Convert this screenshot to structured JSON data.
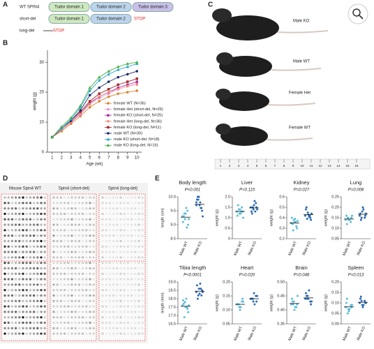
{
  "panel_labels": [
    "A",
    "B",
    "C",
    "D",
    "E"
  ],
  "domains": {
    "rows": [
      {
        "label": "WT SPIN4",
        "boxes": [
          "Tudor domain 1",
          "Tudor domain 2",
          "Tudor domain 3"
        ]
      },
      {
        "label": "short-del",
        "boxes": [
          "Tudor domain 1",
          "Tudor domain 2"
        ],
        "stop": "STOP"
      },
      {
        "label": "long-del",
        "stop": "STOP"
      }
    ]
  },
  "photos": {
    "labels": [
      "Male KO",
      "Male WT",
      "Female Het",
      "Female WT"
    ],
    "ruler": [
      1,
      2,
      3,
      4,
      5,
      6,
      7,
      8,
      9,
      10,
      11,
      12,
      13,
      14,
      15,
      16
    ]
  },
  "blots": {
    "titles": [
      "Mouse Spin4 WT",
      "Spin4 (short-del)",
      "Spin4 (long-del)"
    ]
  },
  "chart_data": [
    {
      "type": "line",
      "xlabel": "Age (wk)",
      "ylabel": "weight (g)",
      "x": [
        1,
        2,
        3,
        4,
        5,
        6,
        7,
        8,
        9,
        10
      ],
      "xlim": [
        0.5,
        10.5
      ],
      "xticks": [
        1,
        2,
        3,
        4,
        5,
        6,
        7,
        8,
        9,
        10
      ],
      "ylim": [
        0,
        34
      ],
      "yticks": [
        0,
        10,
        20,
        30
      ],
      "legend": "lower right",
      "series": [
        {
          "name": "female WT (N=36)",
          "color": "#d9822b",
          "marker": "circle",
          "values": [
            5,
            7,
            9.5,
            12,
            15,
            17,
            18.5,
            19.5,
            20,
            20.5
          ]
        },
        {
          "name": "female Het (short-del, N=26)",
          "color": "#e88bd8",
          "marker": "diamond",
          "values": [
            5,
            7.5,
            10,
            12.5,
            16,
            18,
            19.5,
            21,
            22,
            23
          ]
        },
        {
          "name": "female KO (short-del, N=25)",
          "color": "#b0359e",
          "marker": "square",
          "values": [
            5,
            7.5,
            10,
            13,
            16.5,
            18.5,
            20,
            21.5,
            22.5,
            23.5
          ]
        },
        {
          "name": "female Het (long-del, N=36)",
          "color": "#f08a7a",
          "marker": "circle",
          "values": [
            5,
            7.5,
            10,
            13,
            16,
            18.5,
            20,
            21,
            22,
            22.5
          ]
        },
        {
          "name": "female KO (long-del, N=11)",
          "color": "#a52a2a",
          "marker": "square",
          "values": [
            5,
            8,
            10.5,
            13.5,
            17,
            19.5,
            21,
            22.5,
            23.5,
            24.5
          ]
        },
        {
          "name": "male WT (N=30)",
          "color": "#1c2a6b",
          "marker": "circle",
          "values": [
            5,
            8,
            10.5,
            14,
            19,
            21.5,
            23.5,
            25,
            26,
            27
          ]
        },
        {
          "name": "male KO (short-del, N=18)",
          "color": "#2aa7c9",
          "marker": "triangle",
          "values": [
            5,
            8,
            11,
            15,
            20.5,
            24,
            26,
            27.5,
            28.5,
            29.5
          ]
        },
        {
          "name": "male KO (long-del, N=16)",
          "color": "#4db04a",
          "marker": "triangle",
          "values": [
            5,
            8.5,
            11.5,
            15.5,
            21.5,
            25,
            27,
            28.5,
            29.5,
            30
          ]
        }
      ]
    },
    {
      "type": "strip",
      "title": "Body length",
      "pvalue": "P<0.001",
      "ylabel": "length (cm)",
      "categories": [
        "Male WT",
        "Male KO"
      ],
      "colors": [
        "#5bbcd6",
        "#2d6bb3"
      ],
      "ylim": [
        8.5,
        10
      ],
      "yticks": [
        8.5,
        {
          "value": 9,
          "label": "9.0"
        },
        9.5,
        {
          "value": 10,
          "label": "10.0"
        }
      ],
      "values": [
        [
          9.3,
          9.2,
          9.5,
          9.1,
          9.4,
          9.0,
          9.3,
          9.6,
          9.2,
          9.4,
          8.9,
          9.3
        ],
        [
          9.8,
          10.0,
          9.6,
          9.9,
          9.7,
          9.5,
          10.0,
          9.8,
          9.3,
          9.9,
          9.6,
          9.7
        ]
      ],
      "means": [
        9.27,
        9.73
      ]
    },
    {
      "type": "strip",
      "title": "Liver",
      "pvalue": "P=0.115",
      "ylabel": "weight (g)",
      "categories": [
        "Male WT",
        "Male KO"
      ],
      "colors": [
        "#5bbcd6",
        "#2d6bb3"
      ],
      "ylim": [
        0,
        2
      ],
      "yticks": [
        0,
        0.5,
        {
          "value": 1,
          "label": "1.0"
        },
        1.5,
        {
          "value": 2,
          "label": "2.0"
        }
      ],
      "values": [
        [
          1.3,
          1.2,
          1.5,
          1.1,
          1.4,
          1.3,
          1.6,
          1.2,
          1.0,
          1.4,
          1.3
        ],
        [
          1.5,
          1.4,
          1.7,
          1.3,
          1.6,
          1.5,
          1.2,
          1.8,
          1.4,
          1.5,
          1.3
        ]
      ],
      "means": [
        1.3,
        1.47
      ]
    },
    {
      "type": "strip",
      "title": "Kidney",
      "pvalue": "P=0.027",
      "ylabel": "weight (g)",
      "categories": [
        "Male WT",
        "Male KO"
      ],
      "colors": [
        "#5bbcd6",
        "#2d6bb3"
      ],
      "ylim": [
        0.2,
        0.6
      ],
      "yticks": [
        0.2,
        0.3,
        0.4,
        0.5,
        0.6
      ],
      "values": [
        [
          0.35,
          0.38,
          0.32,
          0.4,
          0.36,
          0.3,
          0.34,
          0.39,
          0.37,
          0.28,
          0.36
        ],
        [
          0.42,
          0.45,
          0.4,
          0.48,
          0.43,
          0.38,
          0.5,
          0.41,
          0.44,
          0.39,
          0.42
        ]
      ],
      "means": [
        0.35,
        0.43
      ]
    },
    {
      "type": "strip",
      "title": "Lung",
      "pvalue": "P=0.008",
      "ylabel": "weight (g)",
      "categories": [
        "Male WT",
        "Male KO"
      ],
      "colors": [
        "#5bbcd6",
        "#2d6bb3"
      ],
      "ylim": [
        0.05,
        0.25
      ],
      "yticks": [
        0.05,
        {
          "value": 0.1,
          "label": "0.10"
        },
        0.15,
        {
          "value": 0.2,
          "label": "0.20"
        },
        0.25
      ],
      "values": [
        [
          0.14,
          0.15,
          0.13,
          0.16,
          0.14,
          0.15,
          0.12,
          0.14,
          0.16,
          0.15
        ],
        [
          0.16,
          0.18,
          0.15,
          0.17,
          0.2,
          0.16,
          0.14,
          0.19,
          0.17,
          0.15
        ]
      ],
      "means": [
        0.144,
        0.167
      ]
    },
    {
      "type": "strip",
      "title": "Tibia length",
      "pvalue": "P<0.0001",
      "ylabel": "length (mm)",
      "categories": [
        "Male WT",
        "Male KO"
      ],
      "colors": [
        "#5bbcd6",
        "#2d6bb3"
      ],
      "ylim": [
        16.5,
        19
      ],
      "yticks": [
        16.5,
        {
          "value": 17,
          "label": "17.0"
        },
        17.5,
        {
          "value": 18,
          "label": "18.0"
        },
        18.5,
        {
          "value": 19,
          "label": "19.0"
        }
      ],
      "values": [
        [
          17.6,
          17.8,
          17.4,
          17.9,
          17.5,
          17.2,
          17.7,
          18.0,
          17.6,
          16.9,
          17.5
        ],
        [
          18.4,
          18.6,
          18.2,
          18.8,
          18.3,
          18.5,
          18.0,
          18.9,
          18.4,
          18.2,
          18.6
        ]
      ],
      "means": [
        17.55,
        18.45
      ]
    },
    {
      "type": "strip",
      "title": "Heart",
      "pvalue": "P=0.020",
      "ylabel": "weight (g)",
      "categories": [
        "Male WT",
        "Male KO"
      ],
      "colors": [
        "#5bbcd6",
        "#2d6bb3"
      ],
      "ylim": [
        0.05,
        0.2
      ],
      "yticks": [
        0.05,
        {
          "value": 0.1,
          "label": "0.10"
        },
        0.15,
        {
          "value": 0.2,
          "label": "0.20"
        }
      ],
      "values": [
        [
          0.12,
          0.11,
          0.13,
          0.12,
          0.1,
          0.14,
          0.12,
          0.11,
          0.13,
          0.12
        ],
        [
          0.14,
          0.13,
          0.15,
          0.14,
          0.16,
          0.13,
          0.14,
          0.12,
          0.15,
          0.14
        ]
      ],
      "means": [
        0.12,
        0.14
      ]
    },
    {
      "type": "strip",
      "title": "Brain",
      "pvalue": "P=0.048",
      "ylabel": "weight (g)",
      "categories": [
        "Male WT",
        "Male KO"
      ],
      "colors": [
        "#5bbcd6",
        "#2d6bb3"
      ],
      "ylim": [
        0.35,
        0.5
      ],
      "yticks": [
        0.35,
        {
          "value": 0.4,
          "label": "0.40"
        },
        0.45,
        {
          "value": 0.5,
          "label": "0.50"
        }
      ],
      "values": [
        [
          0.42,
          0.43,
          0.41,
          0.44,
          0.4,
          0.42,
          0.43,
          0.41,
          0.45,
          0.42
        ],
        [
          0.44,
          0.45,
          0.43,
          0.46,
          0.44,
          0.42,
          0.45,
          0.47,
          0.43,
          0.44
        ]
      ],
      "means": [
        0.423,
        0.443
      ]
    },
    {
      "type": "strip",
      "title": "Spleen",
      "pvalue": "P=0.013",
      "ylabel": "weight (g)",
      "categories": [
        "Male WT",
        "Male KO"
      ],
      "colors": [
        "#5bbcd6",
        "#2d6bb3"
      ],
      "ylim": [
        0,
        0.2
      ],
      "yticks": [
        {
          "value": 0,
          "label": "0.00"
        },
        0.05,
        {
          "value": 0.1,
          "label": "0.10"
        },
        0.15,
        {
          "value": 0.2,
          "label": "0.20"
        }
      ],
      "values": [
        [
          0.08,
          0.07,
          0.09,
          0.1,
          0.06,
          0.08,
          0.12,
          0.07,
          0.09,
          0.05
        ],
        [
          0.1,
          0.09,
          0.11,
          0.12,
          0.08,
          0.1,
          0.13,
          0.09,
          0.1,
          0.11
        ]
      ],
      "means": [
        0.081,
        0.103
      ]
    }
  ]
}
